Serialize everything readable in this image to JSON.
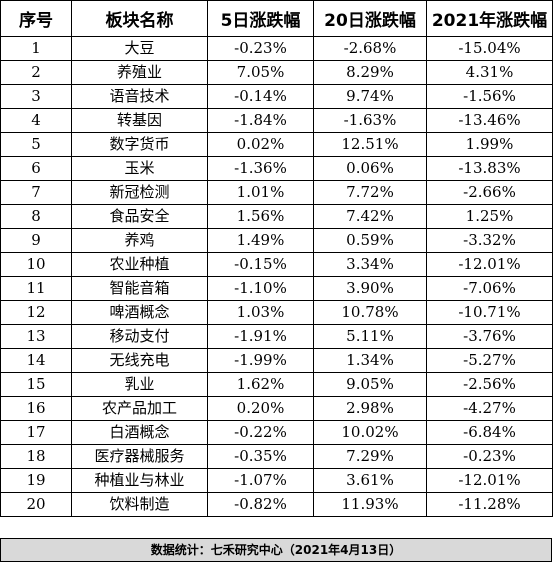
{
  "table": {
    "headers": [
      "序号",
      "板块名称",
      "5日涨跌幅",
      "20日涨跌幅",
      "2021年涨跌幅"
    ],
    "rows": [
      [
        "1",
        "大豆",
        "-0.23%",
        "-2.68%",
        "-15.04%"
      ],
      [
        "2",
        "养殖业",
        "7.05%",
        "8.29%",
        "4.31%"
      ],
      [
        "3",
        "语音技术",
        "-0.14%",
        "9.74%",
        "-1.56%"
      ],
      [
        "4",
        "转基因",
        "-1.84%",
        "-1.63%",
        "-13.46%"
      ],
      [
        "5",
        "数字货币",
        "0.02%",
        "12.51%",
        "1.99%"
      ],
      [
        "6",
        "玉米",
        "-1.36%",
        "0.06%",
        "-13.83%"
      ],
      [
        "7",
        "新冠检测",
        "1.01%",
        "7.72%",
        "-2.66%"
      ],
      [
        "8",
        "食品安全",
        "1.56%",
        "7.42%",
        "1.25%"
      ],
      [
        "9",
        "养鸡",
        "1.49%",
        "0.59%",
        "-3.32%"
      ],
      [
        "10",
        "农业种植",
        "-0.15%",
        "3.34%",
        "-12.01%"
      ],
      [
        "11",
        "智能音箱",
        "-1.10%",
        "3.90%",
        "-7.06%"
      ],
      [
        "12",
        "啤酒概念",
        "1.03%",
        "10.78%",
        "-10.71%"
      ],
      [
        "13",
        "移动支付",
        "-1.91%",
        "5.11%",
        "-3.76%"
      ],
      [
        "14",
        "无线充电",
        "-1.99%",
        "1.34%",
        "-5.27%"
      ],
      [
        "15",
        "乳业",
        "1.62%",
        "9.05%",
        "-2.56%"
      ],
      [
        "16",
        "农产品加工",
        "0.20%",
        "2.98%",
        "-4.27%"
      ],
      [
        "17",
        "白酒概念",
        "-0.22%",
        "10.02%",
        "-6.84%"
      ],
      [
        "18",
        "医疗器械服务",
        "-0.35%",
        "7.29%",
        "-0.23%"
      ],
      [
        "19",
        "种植业与林业",
        "-1.07%",
        "3.61%",
        "-12.01%"
      ],
      [
        "20",
        "饮料制造",
        "-0.82%",
        "11.93%",
        "-11.28%"
      ]
    ]
  },
  "footer": {
    "text": "数据统计：七禾研究中心（2021年4月13日）"
  }
}
